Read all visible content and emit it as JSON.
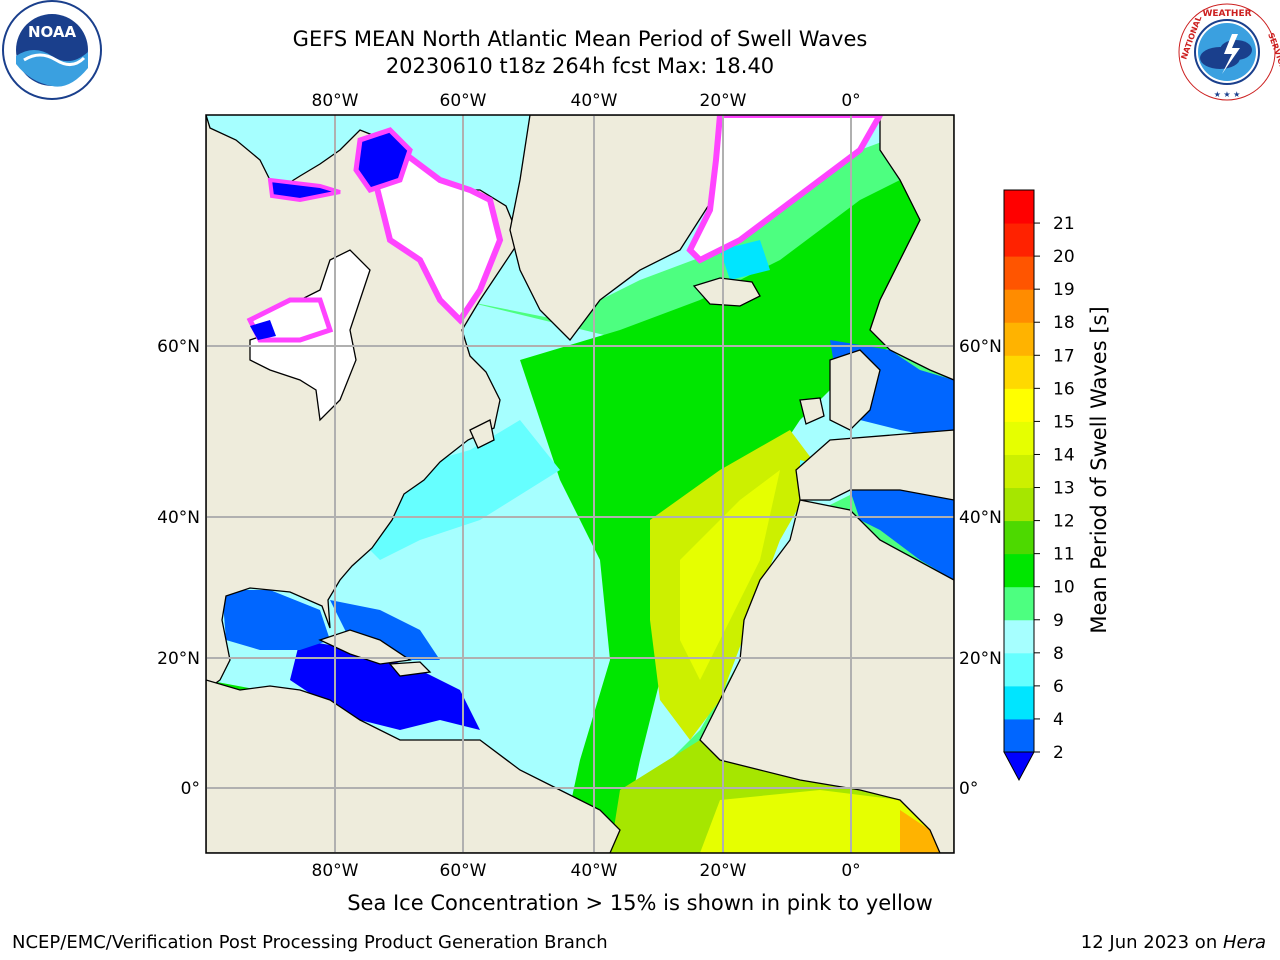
{
  "header": {
    "title_line1": "GEFS MEAN North Atlantic Mean Period of Swell Waves",
    "title_line2": "20230610 t18z 264h fcst   Max: 18.40"
  },
  "caption": "Sea Ice Concentration > 15% is shown in pink to yellow",
  "footer": {
    "left": "NCEP/EMC/Verification Post Processing Product Generation Branch",
    "right_date": "12 Jun 2023 on ",
    "right_host": "Hera"
  },
  "logos": {
    "left": "NOAA",
    "right_ring_text": "NATIONAL WEATHER SERVICE"
  },
  "map": {
    "lon_labels": [
      "80°W",
      "60°W",
      "40°W",
      "20°W",
      "0°"
    ],
    "lat_labels": [
      "60°N",
      "40°N",
      "20°N",
      "0°"
    ],
    "land_color": "#eeecdc",
    "ice_color": "#ffffff"
  },
  "colorbar": {
    "title": "Mean Period of Swell Waves [s]",
    "ticks": [
      "2",
      "4",
      "6",
      "8",
      "9",
      "10",
      "11",
      "12",
      "13",
      "14",
      "15",
      "16",
      "17",
      "18",
      "19",
      "20",
      "21"
    ],
    "colors": [
      "#0066ff",
      "#00e5ff",
      "#66ffff",
      "#a6ffff",
      "#4dff80",
      "#00e600",
      "#4dd900",
      "#a6e600",
      "#ccf000",
      "#e6ff00",
      "#ffff00",
      "#ffd900",
      "#ffb300",
      "#ff8c00",
      "#ff5500",
      "#ff2200",
      "#ff0000"
    ],
    "under_color": "#0000ff"
  }
}
